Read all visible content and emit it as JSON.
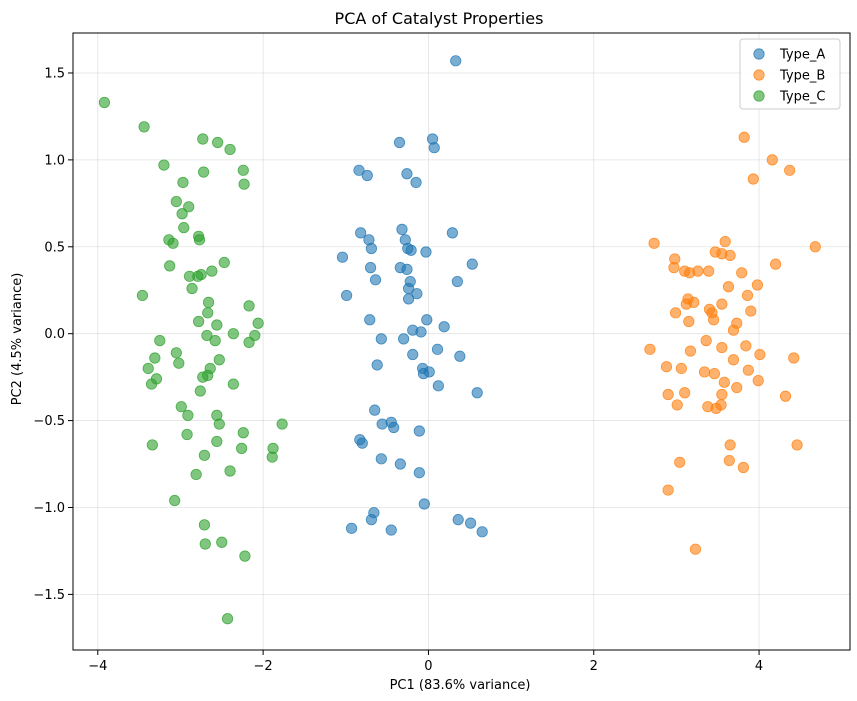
{
  "chart_data": {
    "type": "scatter",
    "title": "PCA of Catalyst Properties",
    "xlabel": "PC1 (83.6% variance)",
    "ylabel": "PC2 (4.5% variance)",
    "xlim": [
      -4.3,
      5.1
    ],
    "ylim": [
      -1.82,
      1.73
    ],
    "xticks": [
      -4,
      -2,
      0,
      2,
      4
    ],
    "xtick_labels": [
      "−4",
      "−2",
      "0",
      "2",
      "4"
    ],
    "yticks": [
      -1.5,
      -1.0,
      -0.5,
      0.0,
      0.5,
      1.0,
      1.5
    ],
    "ytick_labels": [
      "−1.5",
      "−1.0",
      "−0.5",
      "0.0",
      "0.5",
      "1.0",
      "1.5"
    ],
    "grid": true,
    "legend_position": "top-right",
    "series": [
      {
        "name": "Type_A",
        "color": "#1f77b4",
        "points": [
          [
            0.33,
            1.57
          ],
          [
            -0.35,
            1.1
          ],
          [
            0.05,
            1.12
          ],
          [
            0.07,
            1.07
          ],
          [
            -0.84,
            0.94
          ],
          [
            -0.74,
            0.91
          ],
          [
            -0.26,
            0.92
          ],
          [
            -0.15,
            0.87
          ],
          [
            -0.82,
            0.58
          ],
          [
            -0.32,
            0.6
          ],
          [
            0.29,
            0.58
          ],
          [
            -0.72,
            0.54
          ],
          [
            -0.28,
            0.54
          ],
          [
            -0.25,
            0.49
          ],
          [
            -0.21,
            0.48
          ],
          [
            -0.69,
            0.49
          ],
          [
            -0.03,
            0.47
          ],
          [
            -1.04,
            0.44
          ],
          [
            0.53,
            0.4
          ],
          [
            -0.7,
            0.38
          ],
          [
            -0.34,
            0.38
          ],
          [
            -0.26,
            0.37
          ],
          [
            -0.22,
            0.3
          ],
          [
            0.35,
            0.3
          ],
          [
            -0.24,
            0.26
          ],
          [
            -0.64,
            0.31
          ],
          [
            -0.99,
            0.22
          ],
          [
            -0.14,
            0.23
          ],
          [
            -0.24,
            0.2
          ],
          [
            -0.71,
            0.08
          ],
          [
            -0.02,
            0.08
          ],
          [
            0.19,
            0.04
          ],
          [
            -0.19,
            0.02
          ],
          [
            -0.09,
            0.01
          ],
          [
            -0.57,
            -0.03
          ],
          [
            -0.3,
            -0.03
          ],
          [
            0.11,
            -0.09
          ],
          [
            -0.19,
            -0.12
          ],
          [
            0.38,
            -0.13
          ],
          [
            -0.62,
            -0.18
          ],
          [
            0.01,
            -0.22
          ],
          [
            -0.06,
            -0.23
          ],
          [
            -0.07,
            -0.2
          ],
          [
            0.12,
            -0.3
          ],
          [
            0.59,
            -0.34
          ],
          [
            -0.65,
            -0.44
          ],
          [
            -0.45,
            -0.51
          ],
          [
            -0.56,
            -0.52
          ],
          [
            -0.42,
            -0.54
          ],
          [
            -0.11,
            -0.56
          ],
          [
            -0.83,
            -0.61
          ],
          [
            -0.8,
            -0.63
          ],
          [
            -0.57,
            -0.72
          ],
          [
            -0.34,
            -0.75
          ],
          [
            -0.11,
            -0.8
          ],
          [
            -0.05,
            -0.98
          ],
          [
            -0.66,
            -1.03
          ],
          [
            -0.69,
            -1.07
          ],
          [
            0.36,
            -1.07
          ],
          [
            0.51,
            -1.09
          ],
          [
            0.65,
            -1.14
          ],
          [
            -0.93,
            -1.12
          ],
          [
            -0.45,
            -1.13
          ]
        ]
      },
      {
        "name": "Type_B",
        "color": "#ff7f0e",
        "points": [
          [
            3.82,
            1.13
          ],
          [
            4.16,
            1.0
          ],
          [
            4.37,
            0.94
          ],
          [
            3.93,
            0.89
          ],
          [
            4.68,
            0.5
          ],
          [
            3.59,
            0.53
          ],
          [
            2.73,
            0.52
          ],
          [
            3.55,
            0.46
          ],
          [
            3.47,
            0.47
          ],
          [
            3.65,
            0.45
          ],
          [
            2.98,
            0.43
          ],
          [
            3.1,
            0.36
          ],
          [
            3.16,
            0.35
          ],
          [
            3.26,
            0.36
          ],
          [
            3.39,
            0.36
          ],
          [
            4.2,
            0.4
          ],
          [
            3.79,
            0.35
          ],
          [
            2.97,
            0.38
          ],
          [
            3.98,
            0.28
          ],
          [
            3.63,
            0.27
          ],
          [
            3.86,
            0.22
          ],
          [
            3.55,
            0.17
          ],
          [
            3.21,
            0.18
          ],
          [
            3.14,
            0.2
          ],
          [
            3.4,
            0.14
          ],
          [
            3.43,
            0.12
          ],
          [
            3.12,
            0.17
          ],
          [
            3.73,
            0.06
          ],
          [
            3.69,
            0.02
          ],
          [
            2.99,
            0.12
          ],
          [
            3.9,
            0.13
          ],
          [
            3.45,
            0.08
          ],
          [
            3.15,
            0.07
          ],
          [
            4.42,
            -0.14
          ],
          [
            2.68,
            -0.09
          ],
          [
            3.36,
            -0.04
          ],
          [
            3.84,
            -0.07
          ],
          [
            4.01,
            -0.12
          ],
          [
            3.55,
            -0.08
          ],
          [
            3.17,
            -0.1
          ],
          [
            3.69,
            -0.15
          ],
          [
            2.88,
            -0.19
          ],
          [
            3.06,
            -0.2
          ],
          [
            3.46,
            -0.23
          ],
          [
            3.34,
            -0.22
          ],
          [
            3.58,
            -0.28
          ],
          [
            3.87,
            -0.21
          ],
          [
            3.73,
            -0.31
          ],
          [
            3.99,
            -0.27
          ],
          [
            2.9,
            -0.35
          ],
          [
            3.1,
            -0.34
          ],
          [
            3.55,
            -0.35
          ],
          [
            4.32,
            -0.36
          ],
          [
            3.38,
            -0.42
          ],
          [
            3.54,
            -0.41
          ],
          [
            3.01,
            -0.41
          ],
          [
            3.48,
            -0.43
          ],
          [
            3.65,
            -0.64
          ],
          [
            4.46,
            -0.64
          ],
          [
            3.04,
            -0.74
          ],
          [
            3.64,
            -0.73
          ],
          [
            3.81,
            -0.77
          ],
          [
            2.9,
            -0.9
          ],
          [
            3.23,
            -1.24
          ]
        ]
      },
      {
        "name": "Type_C",
        "color": "#2ca02c",
        "points": [
          [
            -3.92,
            1.33
          ],
          [
            -3.44,
            1.19
          ],
          [
            -2.73,
            1.12
          ],
          [
            -2.55,
            1.1
          ],
          [
            -2.4,
            1.06
          ],
          [
            -3.2,
            0.97
          ],
          [
            -2.72,
            0.93
          ],
          [
            -2.24,
            0.94
          ],
          [
            -2.97,
            0.87
          ],
          [
            -2.23,
            0.86
          ],
          [
            -3.05,
            0.76
          ],
          [
            -2.9,
            0.73
          ],
          [
            -2.98,
            0.69
          ],
          [
            -2.78,
            0.56
          ],
          [
            -3.14,
            0.54
          ],
          [
            -3.09,
            0.52
          ],
          [
            -2.77,
            0.54
          ],
          [
            -2.96,
            0.61
          ],
          [
            -3.13,
            0.39
          ],
          [
            -2.47,
            0.41
          ],
          [
            -2.62,
            0.36
          ],
          [
            -2.89,
            0.33
          ],
          [
            -2.75,
            0.34
          ],
          [
            -2.79,
            0.33
          ],
          [
            -2.86,
            0.26
          ],
          [
            -3.46,
            0.22
          ],
          [
            -2.66,
            0.18
          ],
          [
            -2.17,
            0.16
          ],
          [
            -2.67,
            0.12
          ],
          [
            -2.78,
            0.07
          ],
          [
            -2.56,
            0.05
          ],
          [
            -2.06,
            0.06
          ],
          [
            -2.36,
            0.0
          ],
          [
            -2.68,
            -0.01
          ],
          [
            -2.1,
            -0.01
          ],
          [
            -3.25,
            -0.04
          ],
          [
            -2.58,
            -0.04
          ],
          [
            -2.17,
            -0.05
          ],
          [
            -3.05,
            -0.11
          ],
          [
            -3.31,
            -0.14
          ],
          [
            -2.53,
            -0.15
          ],
          [
            -3.02,
            -0.17
          ],
          [
            -3.39,
            -0.2
          ],
          [
            -2.64,
            -0.2
          ],
          [
            -3.29,
            -0.26
          ],
          [
            -2.73,
            -0.25
          ],
          [
            -2.67,
            -0.24
          ],
          [
            -3.35,
            -0.29
          ],
          [
            -2.36,
            -0.29
          ],
          [
            -2.76,
            -0.33
          ],
          [
            -2.99,
            -0.42
          ],
          [
            -2.91,
            -0.47
          ],
          [
            -2.56,
            -0.47
          ],
          [
            -2.53,
            -0.52
          ],
          [
            -1.77,
            -0.52
          ],
          [
            -2.24,
            -0.57
          ],
          [
            -2.92,
            -0.58
          ],
          [
            -3.34,
            -0.64
          ],
          [
            -2.56,
            -0.62
          ],
          [
            -2.26,
            -0.66
          ],
          [
            -1.88,
            -0.66
          ],
          [
            -2.71,
            -0.7
          ],
          [
            -1.89,
            -0.71
          ],
          [
            -2.4,
            -0.79
          ],
          [
            -2.81,
            -0.81
          ],
          [
            -3.07,
            -0.96
          ],
          [
            -2.71,
            -1.1
          ],
          [
            -2.7,
            -1.21
          ],
          [
            -2.5,
            -1.2
          ],
          [
            -2.22,
            -1.28
          ],
          [
            -2.43,
            -1.64
          ]
        ]
      }
    ]
  }
}
